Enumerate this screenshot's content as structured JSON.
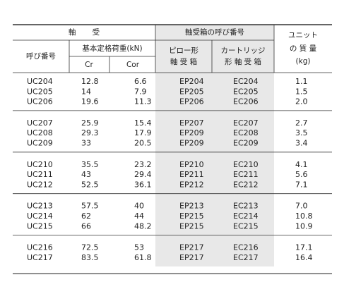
{
  "header": {
    "bearing": "軸 受",
    "bearing_no": "呼び番号",
    "load_rating": "基本定格荷重(kN)",
    "cr": "Cr",
    "cor": "Cor",
    "housing_no": "軸受箱の呼び番号",
    "pillow": [
      "ピロー形",
      "軸 受 箱"
    ],
    "cartridge": [
      "カートリッジ",
      "形 軸 受 箱"
    ],
    "unit_mass": [
      "ユニット",
      "の 質 量",
      "(kg)"
    ]
  },
  "groups": [
    [
      [
        "UC204",
        "12.8",
        "6.6",
        "EP204",
        "EC204",
        "1.1"
      ],
      [
        "UC205",
        "14",
        "7.9",
        "EP205",
        "EC205",
        "1.5"
      ],
      [
        "UC206",
        "19.6",
        "11.3",
        "EP206",
        "EC206",
        "2.0"
      ]
    ],
    [
      [
        "UC207",
        "25.9",
        "15.4",
        "EP207",
        "EC207",
        "2.7"
      ],
      [
        "UC208",
        "29.3",
        "17.9",
        "EP209",
        "EC208",
        "3.5"
      ],
      [
        "UC209",
        "33",
        "20.5",
        "EP209",
        "EC209",
        "3.4"
      ]
    ],
    [
      [
        "UC210",
        "35.5",
        "23.2",
        "EP210",
        "EC210",
        "4.1"
      ],
      [
        "UC211",
        "43",
        "29.4",
        "EP211",
        "EC211",
        "5.6"
      ],
      [
        "UC212",
        "52.5",
        "36.1",
        "EP212",
        "EC212",
        "7.1"
      ]
    ],
    [
      [
        "UC213",
        "57.5",
        "40",
        "EP213",
        "EC213",
        "7.0"
      ],
      [
        "UC214",
        "62",
        "44",
        "EP215",
        "EC214",
        "10.8"
      ],
      [
        "UC215",
        "66",
        "48.2",
        "EP215",
        "EC215",
        "10.9"
      ]
    ],
    [
      [
        "UC216",
        "72.5",
        "53",
        "EP217",
        "EC216",
        "17.1"
      ],
      [
        "UC217",
        "83.5",
        "61.8",
        "EP217",
        "EC217",
        "16.4"
      ]
    ]
  ]
}
